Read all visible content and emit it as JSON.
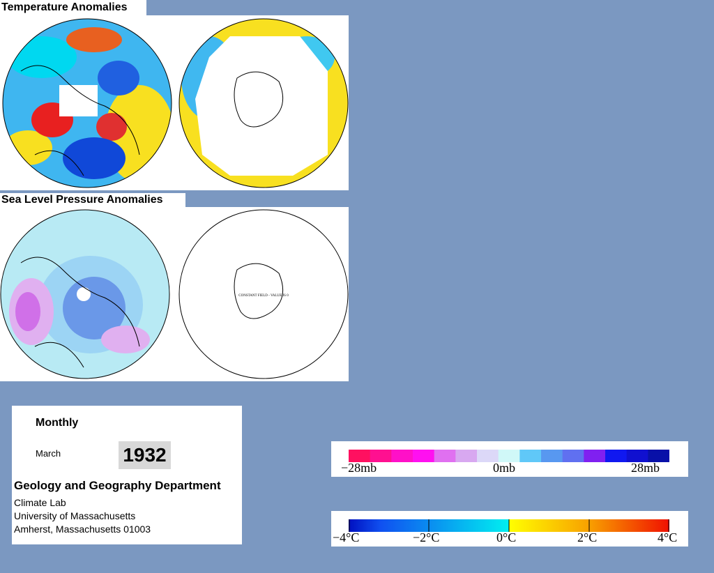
{
  "panels": {
    "temperature_title": "Temperature Anomalies",
    "pressure_title": "Sea Level Pressure Anomalies",
    "constant_note": "CONSTANT FIELD - VALUE IS 0"
  },
  "info": {
    "period": "Monthly",
    "month": "March",
    "year": "1932",
    "department": "Geology and Geography Department",
    "lines": [
      "Climate Lab",
      "University of Massachusetts",
      "Amherst, Massachusetts 01003"
    ]
  },
  "legends": {
    "pressure_labels": [
      "−28mb",
      "0mb",
      "28mb"
    ],
    "temperature_labels": [
      "−4°C",
      "−2°C",
      "0°C",
      "2°C",
      "4°C"
    ]
  }
}
